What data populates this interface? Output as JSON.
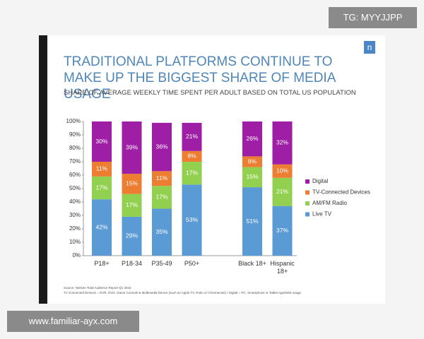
{
  "watermark_top": "TG: MYYJJPP",
  "watermark_bottom": "www.familiar-ayx.com",
  "chart_data": {
    "type": "stacked_bar",
    "title": "TRADITIONAL PLATFORMS CONTINUE TO MAKE UP THE BIGGEST SHARE OF MEDIA USAGE",
    "subtitle": "SHARE OF AVERAGE WEEKLY TIME SPENT PER ADULT BASED ON TOTAL US POPULATION",
    "categories": [
      "P18+",
      "P18-34",
      "P35-49",
      "P50+",
      "Black 18+",
      "Hispanic 18+"
    ],
    "series": [
      {
        "name": "Live TV",
        "color": "#5b9bd5",
        "values": [
          42,
          29,
          35,
          53,
          51,
          37
        ],
        "value_labels": [
          "42%",
          "29%",
          "35%",
          "53%",
          "51%",
          "37%"
        ]
      },
      {
        "name": "AM/FM Radio",
        "color": "#92d050",
        "values": [
          17,
          17,
          17,
          17,
          15,
          21
        ],
        "value_labels": [
          "17%",
          "17%",
          "17%",
          "17%",
          "15%",
          "21%"
        ]
      },
      {
        "name": "TV-Connected Devices",
        "color": "#ed7d31",
        "values": [
          11,
          15,
          11,
          8,
          8,
          10
        ],
        "value_labels": [
          "11%",
          "15%",
          "11%",
          "8%",
          "8%",
          "10%"
        ]
      },
      {
        "name": "Digital",
        "color": "#9e1fa6",
        "values": [
          30,
          39,
          36,
          21,
          26,
          32
        ],
        "value_labels": [
          "30%",
          "39%",
          "36%",
          "21%",
          "26%",
          "32%"
        ]
      }
    ],
    "ylim": [
      0,
      100
    ],
    "yticks": [
      {
        "value": 0,
        "label": "0%"
      },
      {
        "value": 10,
        "label": "10%"
      },
      {
        "value": 20,
        "label": "20%"
      },
      {
        "value": 30,
        "label": "30%"
      },
      {
        "value": 40,
        "label": "40%"
      },
      {
        "value": 50,
        "label": "50%"
      },
      {
        "value": 60,
        "label": "60%"
      },
      {
        "value": 70,
        "label": "70%"
      },
      {
        "value": 80,
        "label": "80%"
      },
      {
        "value": 90,
        "label": "90%"
      },
      {
        "value": 100,
        "label": "100%"
      }
    ],
    "legend": "right",
    "notes": [
      "Source: Nielsen Total Audience Report Q1 2016",
      "TV Connected Devices = DVR, DVD, Game Console & Multimedia Device (such as Apple TV, Roku or Chromecast) / Digital = PC, Smartphone or Tablet App/Web usage"
    ]
  }
}
